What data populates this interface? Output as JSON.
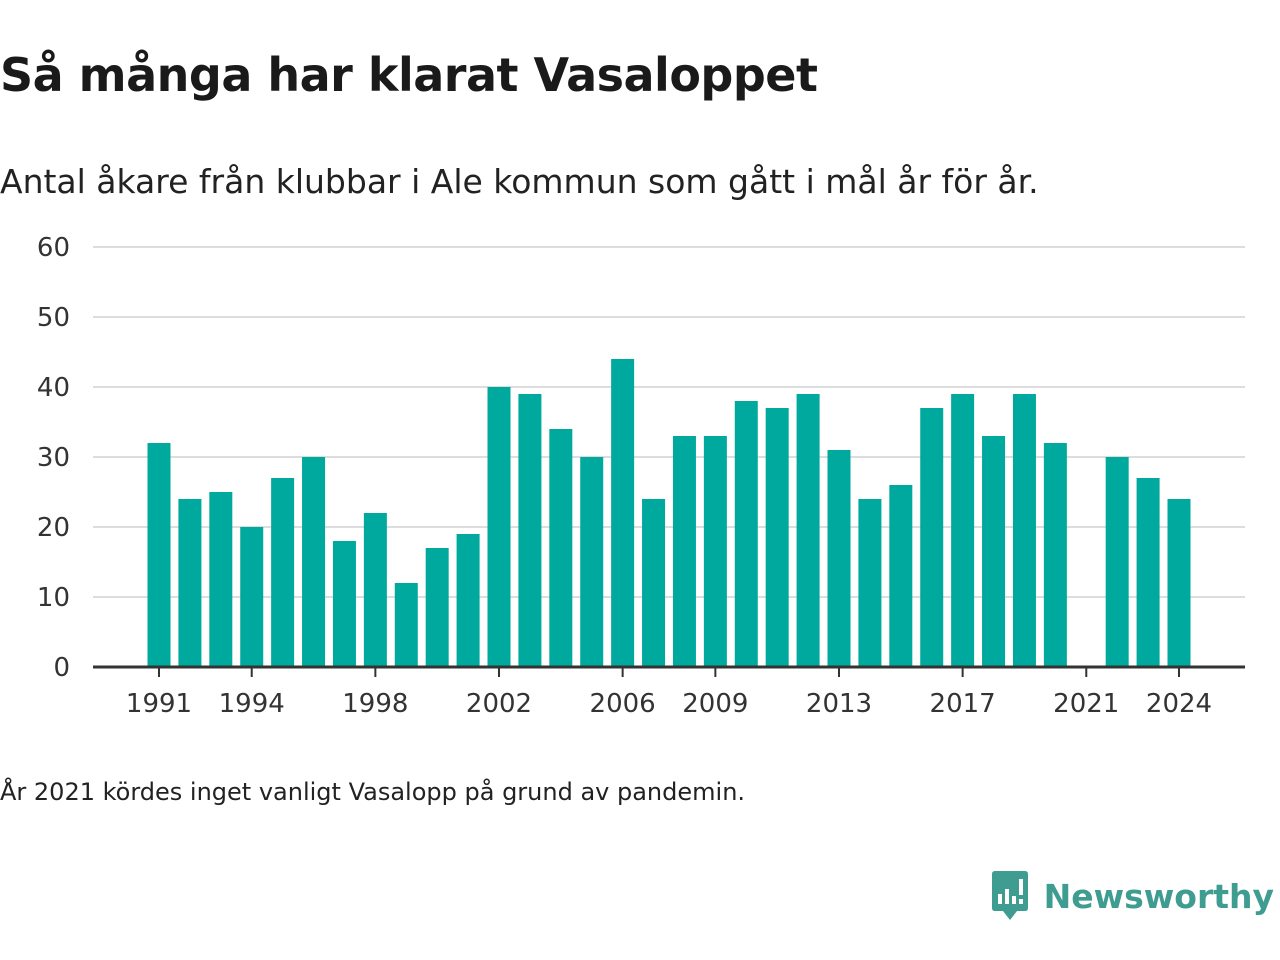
{
  "title": "Så många har klarat Vasaloppet",
  "subtitle": "Antal åkare från klubbar i Ale kommun som gått i mål år för år.",
  "footnote": "År 2021 kördes inget vanligt Vasalopp på grund av pandemin.",
  "brand": {
    "name": "Newsworthy",
    "icon": "newsworthy-logo-icon",
    "color": "#3e9c90"
  },
  "colors": {
    "bar": "#00a99d",
    "grid": "#dddddd",
    "axis": "#333333"
  },
  "chart_data": {
    "type": "bar",
    "categories": [
      1991,
      1992,
      1993,
      1994,
      1995,
      1996,
      1997,
      1998,
      1999,
      2000,
      2001,
      2002,
      2003,
      2004,
      2005,
      2006,
      2007,
      2008,
      2009,
      2010,
      2011,
      2012,
      2013,
      2014,
      2015,
      2016,
      2017,
      2018,
      2019,
      2020,
      2021,
      2022,
      2023,
      2024
    ],
    "values": [
      32,
      24,
      25,
      20,
      27,
      30,
      18,
      22,
      12,
      17,
      19,
      40,
      39,
      34,
      30,
      44,
      24,
      33,
      33,
      38,
      37,
      39,
      31,
      24,
      26,
      37,
      39,
      33,
      39,
      32,
      null,
      30,
      27,
      24
    ],
    "x_tick_labels": [
      "1991",
      "1994",
      "1998",
      "2002",
      "2006",
      "2009",
      "2013",
      "2017",
      "2021",
      "2024"
    ],
    "y_tick_labels": [
      "0",
      "10",
      "20",
      "30",
      "40",
      "50",
      "60"
    ],
    "ylim": [
      0,
      60
    ],
    "grid": true,
    "legend": false
  }
}
